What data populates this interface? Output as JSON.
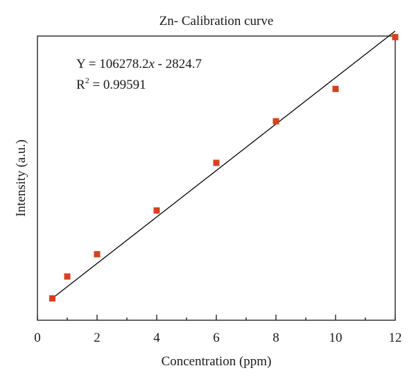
{
  "chart_data": {
    "type": "scatter",
    "title": "Zn- Calibration curve",
    "xlabel": "Concentration (ppm)",
    "ylabel": "Intensity (a.u.)",
    "xlim": [
      0,
      12
    ],
    "ylim": [
      -50000,
      1250000
    ],
    "x_ticks": [
      "0",
      "2",
      "4",
      "6",
      "8",
      "10",
      "12"
    ],
    "x_minor_ticks": [
      1,
      3,
      5,
      7,
      9,
      11
    ],
    "y_ticks_labeled": false,
    "grid": false,
    "marker_color": "#d9401f",
    "line_color": "#000000",
    "series": [
      {
        "x": [
          0.5,
          1,
          2,
          4,
          6,
          8,
          10,
          12
        ],
        "y": [
          50000,
          150000,
          252000,
          452000,
          670000,
          860000,
          1008000,
          1245000
        ]
      }
    ],
    "fit": {
      "slope": 106278.2,
      "intercept": -2824.7,
      "x_range": [
        0.5,
        12
      ]
    },
    "annotations": {
      "equation_prefix": "Y = 106278.2",
      "equation_var": "x",
      "equation_suffix": " - 2824.7",
      "r2_base": "R",
      "r2_sup": "2",
      "r2_value": " = 0.99591"
    }
  }
}
